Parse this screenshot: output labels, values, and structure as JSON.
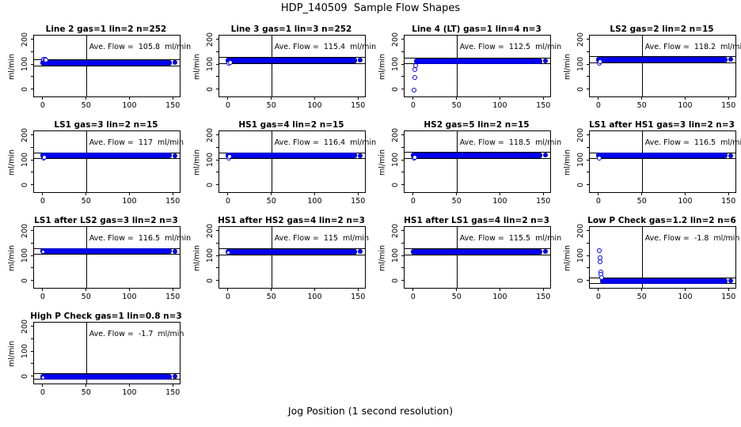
{
  "title": "HDP_140509  Sample Flow Shapes",
  "xlabel": "Jog Position (1 second resolution)",
  "chart_data": {
    "type": "scatter",
    "title": "HDP_140509  Sample Flow Shapes",
    "xlabel": "Jog Position (1 second resolution)",
    "ylabel": "ml/min",
    "point_color": "#0202f2",
    "layout": {
      "rows": 4,
      "cols": 4,
      "xlim": [
        -10,
        158
      ],
      "ylim": [
        -30,
        215
      ],
      "x_ticks": [
        0,
        50,
        100,
        150
      ],
      "y_ticks": [
        0,
        50,
        100,
        150,
        200
      ],
      "y_labeled_ticks": [
        0,
        100,
        200
      ],
      "vline_x": 50,
      "ref_line_offset": 12,
      "grid": false,
      "legend": "none"
    },
    "plots": [
      {
        "title": "Line 2 gas=1 lin=2 n=252",
        "ave_flow": 105.8,
        "annotation": "Ave. Flow =  105.8  ml/min",
        "band": {
          "x_start": 0,
          "x_end": 150,
          "center": 105.8
        },
        "end_x": 152,
        "points": [
          [
            1,
            119
          ],
          [
            2.5,
            121
          ],
          [
            4,
            117
          ]
        ],
        "notch": false
      },
      {
        "title": "Line 3 gas=1 lin=3 n=252",
        "ave_flow": 115.4,
        "annotation": "Ave. Flow =  115.4  ml/min",
        "band": {
          "x_start": 0,
          "x_end": 150,
          "center": 115.4
        },
        "end_x": 152,
        "points": [
          [
            1,
            104
          ],
          [
            2.5,
            107
          ]
        ],
        "notch": false
      },
      {
        "title": "Line 4 (LT) gas=1 lin=4 n=3",
        "ave_flow": 112.5,
        "annotation": "Ave. Flow =  112.5  ml/min",
        "band": {
          "x_start": 4,
          "x_end": 150,
          "center": 112.5
        },
        "end_x": 152,
        "points": [
          [
            1,
            -4
          ],
          [
            1.5,
            46
          ],
          [
            2,
            79
          ],
          [
            2.5,
            93
          ]
        ],
        "notch": false
      },
      {
        "title": "LS2 gas=2 lin=2 n=15",
        "ave_flow": 118.2,
        "annotation": "Ave. Flow =  118.2  ml/min",
        "band": {
          "x_start": 0,
          "x_end": 150,
          "center": 118.2
        },
        "end_x": 152,
        "points": [
          [
            1,
            105
          ],
          [
            2,
            109
          ]
        ],
        "notch": false
      },
      {
        "title": "LS1 gas=3 lin=2 n=15",
        "ave_flow": 117,
        "annotation": "Ave. Flow =  117  ml/min",
        "band": {
          "x_start": 0,
          "x_end": 150,
          "center": 117
        },
        "end_x": 152,
        "points": [
          [
            1,
            106
          ],
          [
            2,
            110
          ]
        ],
        "notch": false
      },
      {
        "title": "HS1 gas=4 lin=2 n=15",
        "ave_flow": 116.4,
        "annotation": "Ave. Flow =  116.4  ml/min",
        "band": {
          "x_start": 0,
          "x_end": 150,
          "center": 116.4
        },
        "end_x": 152,
        "points": [
          [
            1,
            108
          ],
          [
            2,
            112
          ]
        ],
        "notch": false
      },
      {
        "title": "HS2 gas=5 lin=2 n=15",
        "ave_flow": 118.5,
        "annotation": "Ave. Flow =  118.5  ml/min",
        "band": {
          "x_start": 0,
          "x_end": 150,
          "center": 118.5
        },
        "end_x": 152,
        "points": [
          [
            1,
            106
          ],
          [
            2,
            110
          ]
        ],
        "notch": false
      },
      {
        "title": "LS1 after HS1 gas=3 lin=2 n=3",
        "ave_flow": 116.5,
        "annotation": "Ave. Flow =  116.5  ml/min",
        "band": {
          "x_start": 0,
          "x_end": 150,
          "center": 116.5
        },
        "end_x": 152,
        "points": [
          [
            1,
            108
          ]
        ],
        "notch": false
      },
      {
        "title": "LS1 after LS2 gas=3 lin=2 n=3",
        "ave_flow": 116.5,
        "annotation": "Ave. Flow =  116.5  ml/min",
        "band": {
          "x_start": 0,
          "x_end": 150,
          "center": 116.5
        },
        "end_x": 152,
        "points": [],
        "notch": true
      },
      {
        "title": "HS1 after HS2 gas=4 lin=2 n=3",
        "ave_flow": 115,
        "annotation": "Ave. Flow =  115  ml/min",
        "band": {
          "x_start": 0,
          "x_end": 150,
          "center": 115
        },
        "end_x": 152,
        "points": [],
        "notch": true
      },
      {
        "title": "HS1 after LS1 gas=4 lin=2 n=3",
        "ave_flow": 115.5,
        "annotation": "Ave. Flow =  115.5  ml/min",
        "band": {
          "x_start": 0,
          "x_end": 150,
          "center": 115.5
        },
        "end_x": 152,
        "points": [],
        "notch": false
      },
      {
        "title": "Low P Check gas=1.2 lin=2 n=6",
        "ave_flow": -1.8,
        "annotation": "Ave. Flow =  -1.8  ml/min",
        "band": {
          "x_start": 5,
          "x_end": 150,
          "center": -1.8
        },
        "end_x": 152,
        "points": [
          [
            1,
            118
          ],
          [
            1.5,
            92
          ],
          [
            2,
            76
          ],
          [
            2.5,
            35
          ],
          [
            3,
            24
          ],
          [
            3.5,
            12
          ]
        ],
        "notch": false
      },
      {
        "title": "High P Check gas=1 lin=0.8 n=3",
        "ave_flow": -1.7,
        "annotation": "Ave. Flow =  -1.7  ml/min",
        "band": {
          "x_start": 0,
          "x_end": 150,
          "center": -1.7
        },
        "end_x": 152,
        "points": [],
        "notch": true
      }
    ]
  }
}
